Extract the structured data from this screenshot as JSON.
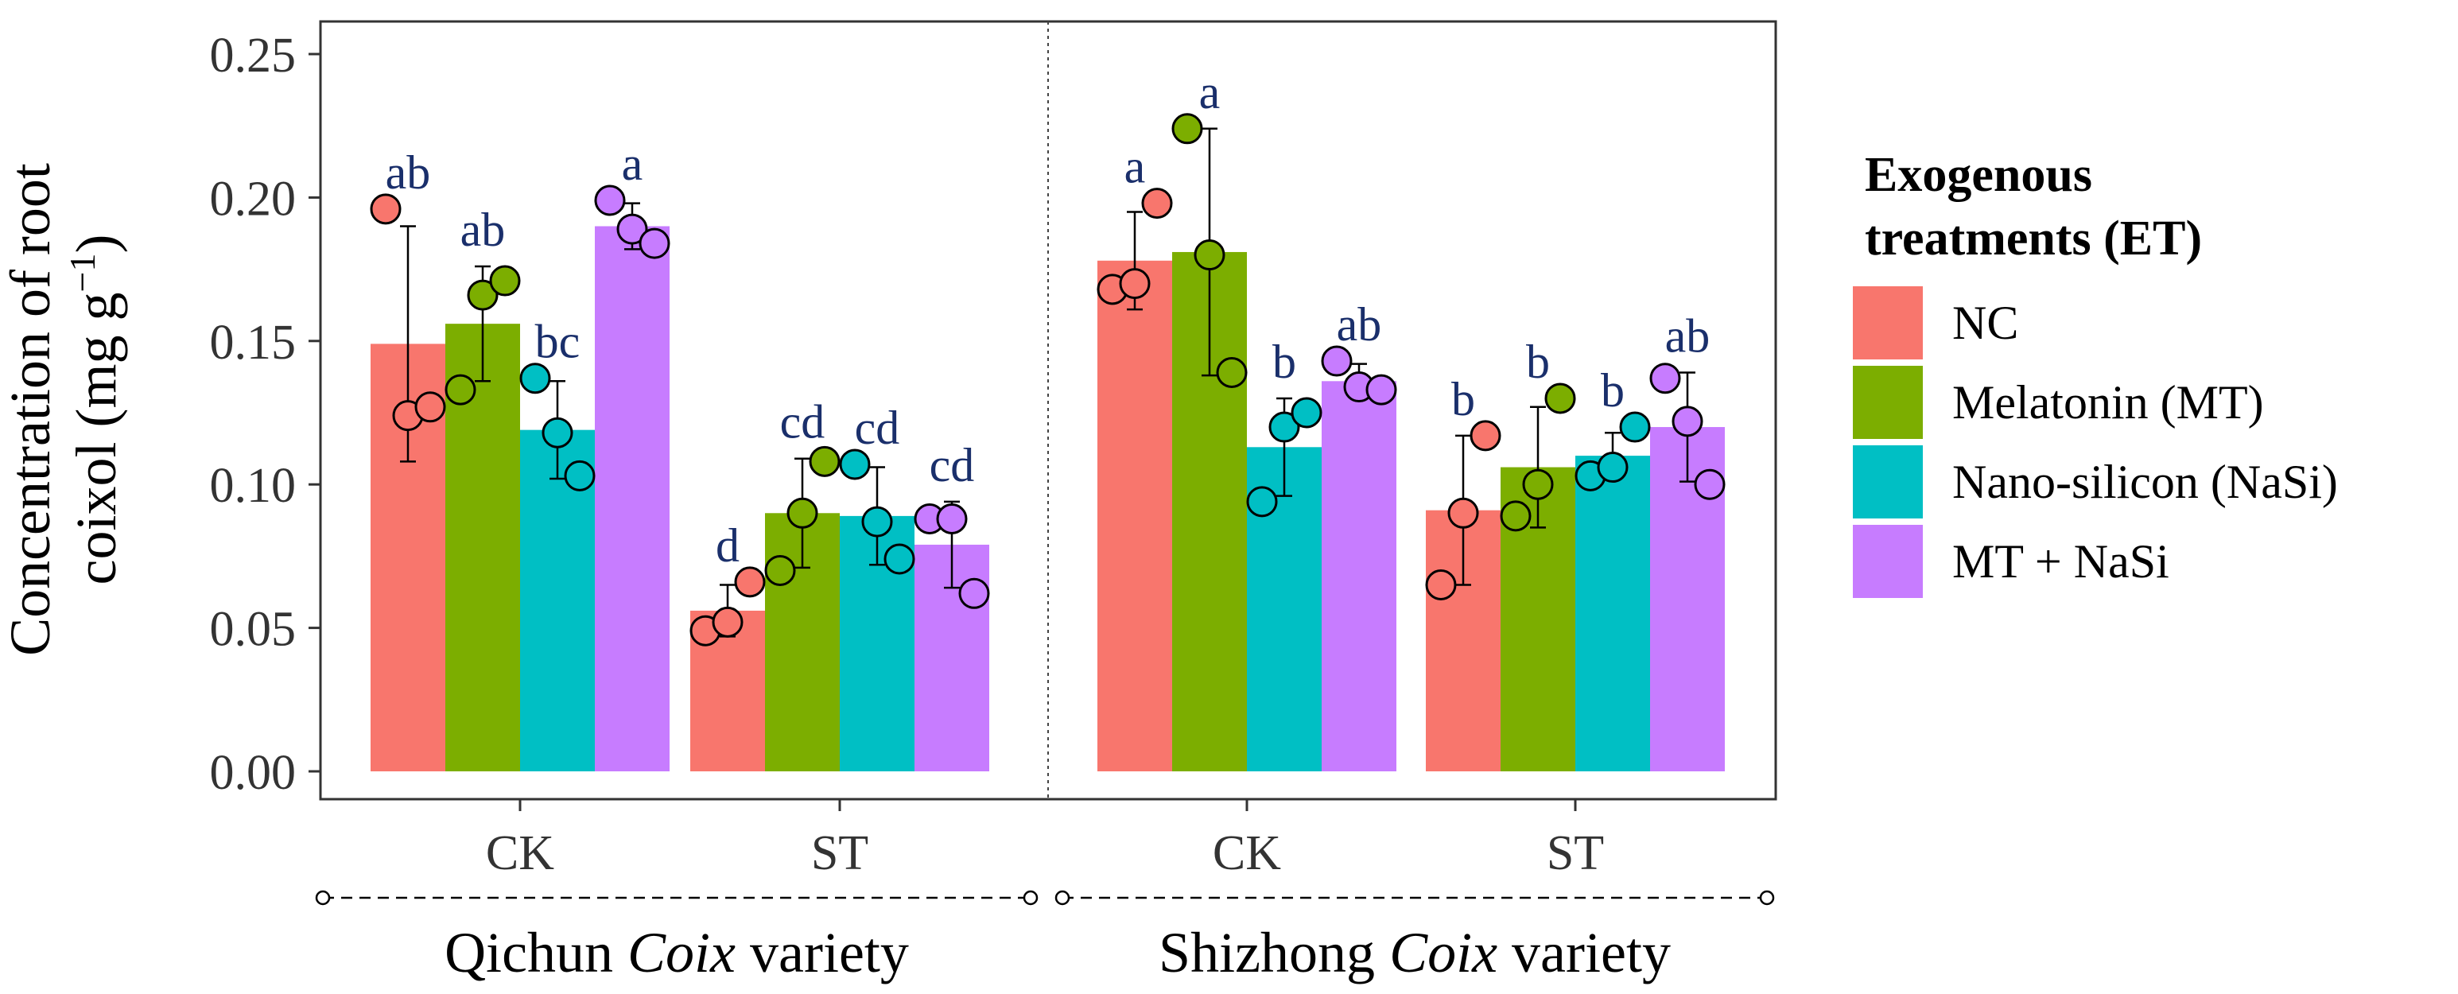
{
  "chart_data": {
    "type": "bar",
    "ylabel_line1": "Concentration of root",
    "ylabel_line2": "coixol (mg g",
    "ylabel_sup": "−1",
    "ylabel_close": ")",
    "ylim": [
      0,
      0.26
    ],
    "yticks": [
      0.0,
      0.05,
      0.1,
      0.15,
      0.2,
      0.25
    ],
    "ytick_labels": [
      "0.00",
      "0.05",
      "0.10",
      "0.15",
      "0.20",
      "0.25"
    ],
    "panels": [
      {
        "variety_prefix": "Qichun ",
        "variety_italic": "Coix",
        "variety_suffix": " variety",
        "groups": [
          {
            "label": "CK",
            "bars": [
              {
                "mean": 0.149,
                "sd": 0.041,
                "letter": "ab",
                "points": [
                  0.196,
                  0.124,
                  0.127
                ]
              },
              {
                "mean": 0.156,
                "sd": 0.02,
                "letter": "ab",
                "points": [
                  0.133,
                  0.166,
                  0.171
                ]
              },
              {
                "mean": 0.119,
                "sd": 0.017,
                "letter": "bc",
                "points": [
                  0.137,
                  0.118,
                  0.103
                ]
              },
              {
                "mean": 0.19,
                "sd": 0.008,
                "letter": "a",
                "points": [
                  0.199,
                  0.189,
                  0.184
                ]
              }
            ]
          },
          {
            "label": "ST",
            "bars": [
              {
                "mean": 0.056,
                "sd": 0.009,
                "letter": "d",
                "points": [
                  0.049,
                  0.052,
                  0.066
                ]
              },
              {
                "mean": 0.09,
                "sd": 0.019,
                "letter": "cd",
                "points": [
                  0.07,
                  0.09,
                  0.108
                ]
              },
              {
                "mean": 0.089,
                "sd": 0.017,
                "letter": "cd",
                "points": [
                  0.107,
                  0.087,
                  0.074
                ]
              },
              {
                "mean": 0.079,
                "sd": 0.015,
                "letter": "cd",
                "points": [
                  0.088,
                  0.088,
                  0.062
                ]
              }
            ]
          }
        ]
      },
      {
        "variety_prefix": "Shizhong ",
        "variety_italic": "Coix",
        "variety_suffix": " variety",
        "groups": [
          {
            "label": "CK",
            "bars": [
              {
                "mean": 0.178,
                "sd": 0.017,
                "letter": "a",
                "points": [
                  0.168,
                  0.17,
                  0.198
                ]
              },
              {
                "mean": 0.181,
                "sd": 0.043,
                "letter": "a",
                "points": [
                  0.224,
                  0.18,
                  0.139
                ]
              },
              {
                "mean": 0.113,
                "sd": 0.017,
                "letter": "b",
                "points": [
                  0.094,
                  0.12,
                  0.125
                ]
              },
              {
                "mean": 0.136,
                "sd": 0.006,
                "letter": "ab",
                "points": [
                  0.143,
                  0.134,
                  0.133
                ]
              }
            ]
          },
          {
            "label": "ST",
            "bars": [
              {
                "mean": 0.091,
                "sd": 0.026,
                "letter": "b",
                "points": [
                  0.065,
                  0.09,
                  0.117
                ]
              },
              {
                "mean": 0.106,
                "sd": 0.021,
                "letter": "b",
                "points": [
                  0.089,
                  0.1,
                  0.13
                ]
              },
              {
                "mean": 0.11,
                "sd": 0.008,
                "letter": "b",
                "points": [
                  0.103,
                  0.106,
                  0.12
                ]
              },
              {
                "mean": 0.12,
                "sd": 0.019,
                "letter": "ab",
                "points": [
                  0.137,
                  0.122,
                  0.1
                ]
              }
            ]
          }
        ]
      }
    ],
    "legend": {
      "title_line1": "Exogenous",
      "title_line2": "treatments (ET)",
      "placement": "right",
      "entries": [
        {
          "label": "NC",
          "color": "#F8766D"
        },
        {
          "label": "Melatonin (MT)",
          "color": "#7CAE00"
        },
        {
          "label": "Nano-silicon (NaSi)",
          "color": "#00BFC4"
        },
        {
          "label": "MT + NaSi",
          "color": "#C77CFF"
        }
      ]
    },
    "letter_color": "#1a2f6b"
  }
}
